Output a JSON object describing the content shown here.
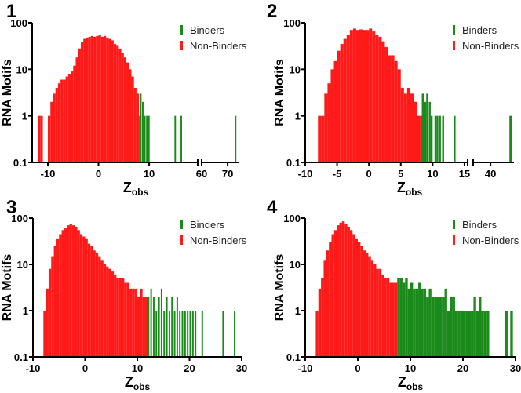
{
  "colors": {
    "binders": "#1a8a1a",
    "non_binders": "#ff1a1a",
    "axis": "#000000"
  },
  "chart_data": [
    {
      "type": "bar",
      "panel_label": "1",
      "ylabel": "RNA Motifs",
      "xlabel": "Z",
      "xlabel_sub": "obs",
      "yscale": "log",
      "ylim": [
        0.1,
        100
      ],
      "yticks": [
        "0.1",
        "1",
        "10",
        "100"
      ],
      "x_segments": [
        [
          -13.1,
          19.6
        ],
        [
          60,
          74.5
        ]
      ],
      "xticks": [
        [
          "-10",
          "0",
          "10"
        ],
        [
          "60",
          "70"
        ]
      ],
      "legend": [
        "Binders",
        "Non-Binders"
      ],
      "legend_position": "top-right",
      "series": [
        {
          "name": "Non-Binders",
          "bin_width": 0.5,
          "x": [
            -12,
            -11.5,
            -10,
            -9.5,
            -9,
            -8.5,
            -8,
            -7.5,
            -7,
            -6.5,
            -6,
            -5.5,
            -5,
            -4.5,
            -4,
            -3.5,
            -3,
            -2.5,
            -2,
            -1.5,
            -1,
            -0.5,
            0,
            0.5,
            1,
            1.5,
            2,
            2.5,
            3,
            3.5,
            4,
            4.5,
            5,
            5.5,
            6,
            6.5,
            7,
            7.5,
            8
          ],
          "y": [
            1,
            1,
            1,
            2,
            3,
            4,
            5,
            6,
            6,
            7,
            8,
            9,
            12,
            18,
            28,
            38,
            45,
            48,
            50,
            52,
            50,
            52,
            55,
            50,
            52,
            48,
            45,
            42,
            35,
            32,
            28,
            22,
            18,
            14,
            10,
            7,
            4,
            3,
            1
          ]
        },
        {
          "name": "Binders",
          "bin_width": 0.3,
          "x": [
            8.2,
            8.6,
            9.0,
            9.4,
            9.8,
            15,
            16.2,
            73
          ],
          "y": [
            3,
            2,
            1,
            1,
            1,
            1,
            1,
            1
          ]
        }
      ]
    },
    {
      "type": "bar",
      "panel_label": "2",
      "ylabel": "RNA Motifs",
      "xlabel": "Z",
      "xlabel_sub": "obs",
      "yscale": "log",
      "ylim": [
        0.1,
        100
      ],
      "yticks": [
        "0.1",
        "1",
        "10",
        "100"
      ],
      "x_segments": [
        [
          -10,
          15.5
        ],
        [
          37.7,
          43.1
        ]
      ],
      "xticks": [
        [
          "-10",
          "-5",
          "0",
          "5",
          "10",
          "15"
        ],
        [
          "40"
        ]
      ],
      "legend": [
        "Binders",
        "Non-Binders"
      ],
      "legend_position": "top-right",
      "series": [
        {
          "name": "Non-Binders",
          "bin_width": 0.5,
          "x": [
            -8,
            -7.5,
            -7,
            -6.5,
            -6,
            -5.5,
            -5,
            -4.5,
            -4,
            -3.5,
            -3,
            -2.5,
            -2,
            -1.5,
            -1,
            -0.5,
            0,
            0.5,
            1,
            1.5,
            2,
            2.5,
            3,
            3.5,
            4,
            4.5,
            5,
            5.5,
            6,
            6.5,
            7,
            7.5,
            8
          ],
          "y": [
            1,
            1,
            3,
            5,
            10,
            15,
            25,
            35,
            45,
            55,
            70,
            75,
            70,
            72,
            70,
            70,
            75,
            65,
            55,
            50,
            40,
            30,
            20,
            20,
            15,
            10,
            4,
            3,
            4,
            3,
            2,
            1,
            1
          ]
        },
        {
          "name": "Binders",
          "bin_width": 0.3,
          "x": [
            8.3,
            8.7,
            9.0,
            9.4,
            9.7,
            10.3,
            10.6,
            11.0,
            11.5,
            13.3,
            42.5
          ],
          "y": [
            3,
            2,
            3,
            2,
            1,
            1,
            1,
            1,
            1,
            1,
            1
          ]
        }
      ]
    },
    {
      "type": "bar",
      "panel_label": "3",
      "ylabel": "RNA Motifs",
      "xlabel": "Z",
      "xlabel_sub": "obs",
      "yscale": "log",
      "ylim": [
        0.1,
        100
      ],
      "yticks": [
        "0.1",
        "1",
        "10",
        "100"
      ],
      "x_segments": [
        [
          -10,
          30
        ]
      ],
      "xticks": [
        [
          "-10",
          "0",
          "10",
          "20",
          "30"
        ]
      ],
      "legend": [
        "Binders",
        "Non-Binders"
      ],
      "legend_position": "top-right",
      "series": [
        {
          "name": "Non-Binders",
          "bin_width": 0.5,
          "x": [
            -8,
            -7.5,
            -7,
            -6.5,
            -6,
            -5.5,
            -5,
            -4.5,
            -4,
            -3.5,
            -3,
            -2.5,
            -2,
            -1.5,
            -1,
            -0.5,
            0,
            0.5,
            1,
            1.5,
            2,
            2.5,
            3,
            3.5,
            4,
            4.5,
            5,
            5.5,
            6,
            6.5,
            7,
            7.5,
            8,
            8.5,
            9,
            9.5,
            10,
            10.5,
            11,
            11.5
          ],
          "y": [
            1,
            3,
            8,
            15,
            25,
            35,
            45,
            55,
            60,
            70,
            75,
            70,
            65,
            55,
            45,
            40,
            35,
            28,
            25,
            20,
            18,
            15,
            12,
            10,
            9,
            8,
            7,
            6,
            5,
            5,
            5,
            4,
            4,
            3,
            3,
            3,
            2,
            3,
            2,
            2
          ]
        },
        {
          "name": "Binders",
          "bin_width": 0.3,
          "x": [
            12,
            12.5,
            13,
            13.5,
            14,
            14.5,
            15,
            15.5,
            16,
            16.5,
            17,
            17.5,
            18,
            18.5,
            19,
            19.5,
            20,
            20.5,
            21,
            22.3,
            26.3,
            28.5
          ],
          "y": [
            2,
            3,
            2,
            1,
            2,
            3,
            1,
            2,
            1,
            2,
            1,
            2,
            1,
            1,
            1,
            1,
            1,
            1,
            1,
            1,
            1,
            1
          ]
        }
      ]
    },
    {
      "type": "bar",
      "panel_label": "4",
      "ylabel": "RNA Motifs",
      "xlabel": "Z",
      "xlabel_sub": "obs",
      "yscale": "log",
      "ylim": [
        0.1,
        100
      ],
      "yticks": [
        "0.1",
        "1",
        "10",
        "100"
      ],
      "x_segments": [
        [
          -10,
          30
        ]
      ],
      "xticks": [
        [
          "-10",
          "0",
          "10",
          "20",
          "30"
        ]
      ],
      "legend": [
        "Binders",
        "Non-Binders"
      ],
      "legend_position": "top-right",
      "series": [
        {
          "name": "Non-Binders",
          "bin_width": 0.5,
          "x": [
            -8,
            -7.5,
            -7,
            -6.5,
            -6,
            -5.5,
            -5,
            -4.5,
            -4,
            -3.5,
            -3,
            -2.5,
            -2,
            -1.5,
            -1,
            -0.5,
            0,
            0.5,
            1,
            1.5,
            2,
            2.5,
            3,
            3.5,
            4,
            4.5,
            5,
            5.5,
            6,
            6.5,
            7
          ],
          "y": [
            1,
            3,
            5,
            12,
            20,
            30,
            45,
            55,
            70,
            80,
            85,
            75,
            65,
            55,
            45,
            35,
            30,
            25,
            20,
            18,
            15,
            12,
            10,
            8,
            8,
            6,
            5,
            5,
            4,
            4,
            4
          ]
        },
        {
          "name": "Binders",
          "bin_width": 0.5,
          "x": [
            7.5,
            8,
            8.5,
            9,
            9.5,
            10,
            10.5,
            11,
            11.5,
            12,
            12.5,
            13,
            13.5,
            14,
            14.5,
            15,
            15.5,
            16,
            16.5,
            17,
            17.5,
            18,
            18.5,
            19,
            19.5,
            20,
            20.5,
            21,
            21.5,
            22,
            22.5,
            23,
            23.5,
            24,
            24.5,
            28,
            29
          ],
          "y": [
            5,
            5,
            4,
            5,
            3,
            4,
            3,
            3,
            4,
            3,
            3,
            2,
            3,
            2,
            2,
            2,
            2,
            2,
            3,
            1,
            2,
            2,
            1,
            1,
            1,
            1,
            1,
            1,
            1,
            2,
            1,
            2,
            1,
            1,
            1,
            1,
            1
          ]
        }
      ]
    }
  ]
}
